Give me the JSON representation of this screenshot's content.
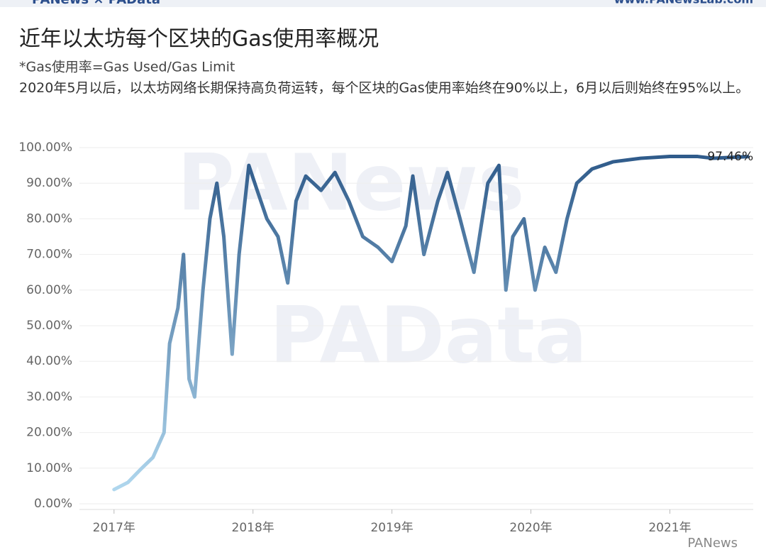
{
  "header": {
    "brand": "PANews × PAData",
    "site": "www.PANewsLab.com"
  },
  "watermarks": [
    "PANews",
    "PAData"
  ],
  "footer_brand": "PANews",
  "chart_data": {
    "type": "line",
    "title": "近年以太坊每个区块的Gas使用率概况",
    "subtitle": "*Gas使用率=Gas Used/Gas Limit",
    "note": "2020年5月以后，以太坊网络长期保持高负荷运转，每个区块的Gas使用率始终在90%以上，6月以后则始终在95%以上。",
    "x": [
      2017.0,
      2017.1,
      2017.2,
      2017.28,
      2017.36,
      2017.4,
      2017.46,
      2017.5,
      2017.54,
      2017.58,
      2017.64,
      2017.69,
      2017.74,
      2017.79,
      2017.85,
      2017.9,
      2017.97,
      2018.03,
      2018.1,
      2018.18,
      2018.25,
      2018.31,
      2018.38,
      2018.49,
      2018.59,
      2018.69,
      2018.79,
      2018.9,
      2019.0,
      2019.1,
      2019.15,
      2019.23,
      2019.33,
      2019.4,
      2019.49,
      2019.59,
      2019.69,
      2019.77,
      2019.82,
      2019.87,
      2019.95,
      2020.03,
      2020.1,
      2020.18,
      2020.26,
      2020.33,
      2020.44,
      2020.59,
      2020.79,
      2021.0,
      2021.2,
      2021.31,
      2021.56
    ],
    "series": [
      {
        "name": "Gas使用率",
        "values": [
          4,
          6,
          10,
          13,
          20,
          45,
          55,
          70,
          35,
          30,
          60,
          80,
          90,
          75,
          42,
          70,
          95,
          88,
          80,
          75,
          62,
          85,
          92,
          88,
          93,
          85,
          75,
          72,
          68,
          78,
          92,
          70,
          85,
          93,
          80,
          65,
          90,
          95,
          60,
          75,
          80,
          60,
          72,
          65,
          80,
          90,
          94,
          96,
          97,
          97.5,
          97.5,
          97,
          97.46
        ]
      }
    ],
    "color_scale": [
      "#b5dcf2",
      "#2c5888"
    ],
    "annotations": [
      {
        "text": "97.46%",
        "x": 2021.56,
        "y": 97.46
      }
    ],
    "xlim": [
      2016.7,
      2021.6
    ],
    "xticks": [
      {
        "value": 2017,
        "label": "2017年"
      },
      {
        "value": 2018,
        "label": "2018年"
      },
      {
        "value": 2019,
        "label": "2019年"
      },
      {
        "value": 2020,
        "label": "2020年"
      },
      {
        "value": 2021,
        "label": "2021年"
      }
    ],
    "ylim": [
      0,
      100
    ],
    "yticks": [
      {
        "value": 0,
        "label": "0.00%"
      },
      {
        "value": 10,
        "label": "10.00%"
      },
      {
        "value": 20,
        "label": "20.00%"
      },
      {
        "value": 30,
        "label": "30.00%"
      },
      {
        "value": 40,
        "label": "40.00%"
      },
      {
        "value": 50,
        "label": "50.00%"
      },
      {
        "value": 60,
        "label": "60.00%"
      },
      {
        "value": 70,
        "label": "70.00%"
      },
      {
        "value": 80,
        "label": "80.00%"
      },
      {
        "value": 90,
        "label": "90.00%"
      },
      {
        "value": 100,
        "label": "100.00%"
      }
    ],
    "grid": true
  }
}
